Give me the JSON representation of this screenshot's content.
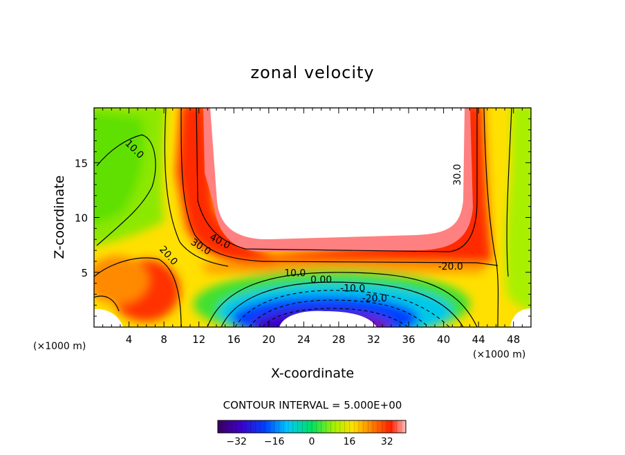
{
  "chart_data": {
    "type": "heatmap",
    "title": "zonal velocity",
    "xlabel": "X-coordinate",
    "ylabel": "Z-coordinate",
    "x_unit": "(×1000 m)",
    "z_unit": "(×1000 m)",
    "xlim": [
      0,
      50
    ],
    "ylim": [
      0,
      20
    ],
    "x_ticks": [
      4,
      8,
      12,
      16,
      20,
      24,
      28,
      32,
      36,
      40,
      44,
      48
    ],
    "y_ticks": [
      5,
      10,
      15
    ],
    "contour_interval_text": "CONTOUR INTERVAL = 5.000E+00",
    "contour_labels": [
      {
        "text": "10.0",
        "x": 4.6,
        "z": 16.2,
        "angle": 45
      },
      {
        "text": "40.0",
        "x": 14.4,
        "z": 7.8,
        "angle": 28
      },
      {
        "text": "30.0",
        "x": 12.2,
        "z": 7.3,
        "angle": 32
      },
      {
        "text": "20.0",
        "x": 8.5,
        "z": 6.5,
        "angle": 48
      },
      {
        "text": "30.0",
        "x": 41.6,
        "z": 13.9,
        "angle": -90
      },
      {
        "text": "-20.0",
        "x": 40.8,
        "z": 5.5,
        "angle": 0
      },
      {
        "text": "10.0",
        "x": 23.0,
        "z": 4.9,
        "angle": 0
      },
      {
        "text": "0.00",
        "x": 26.0,
        "z": 4.3,
        "angle": 0
      },
      {
        "text": "-10.0",
        "x": 29.6,
        "z": 3.5,
        "angle": 0
      },
      {
        "text": "-20.0",
        "x": 32.1,
        "z": 2.6,
        "angle": 0
      }
    ],
    "colorbar": {
      "min": -40,
      "max": 40,
      "tick_values": [
        -32,
        -16,
        0,
        16,
        32
      ],
      "tick_labels": [
        "−32",
        "−16",
        "0",
        "16",
        "32"
      ]
    }
  }
}
